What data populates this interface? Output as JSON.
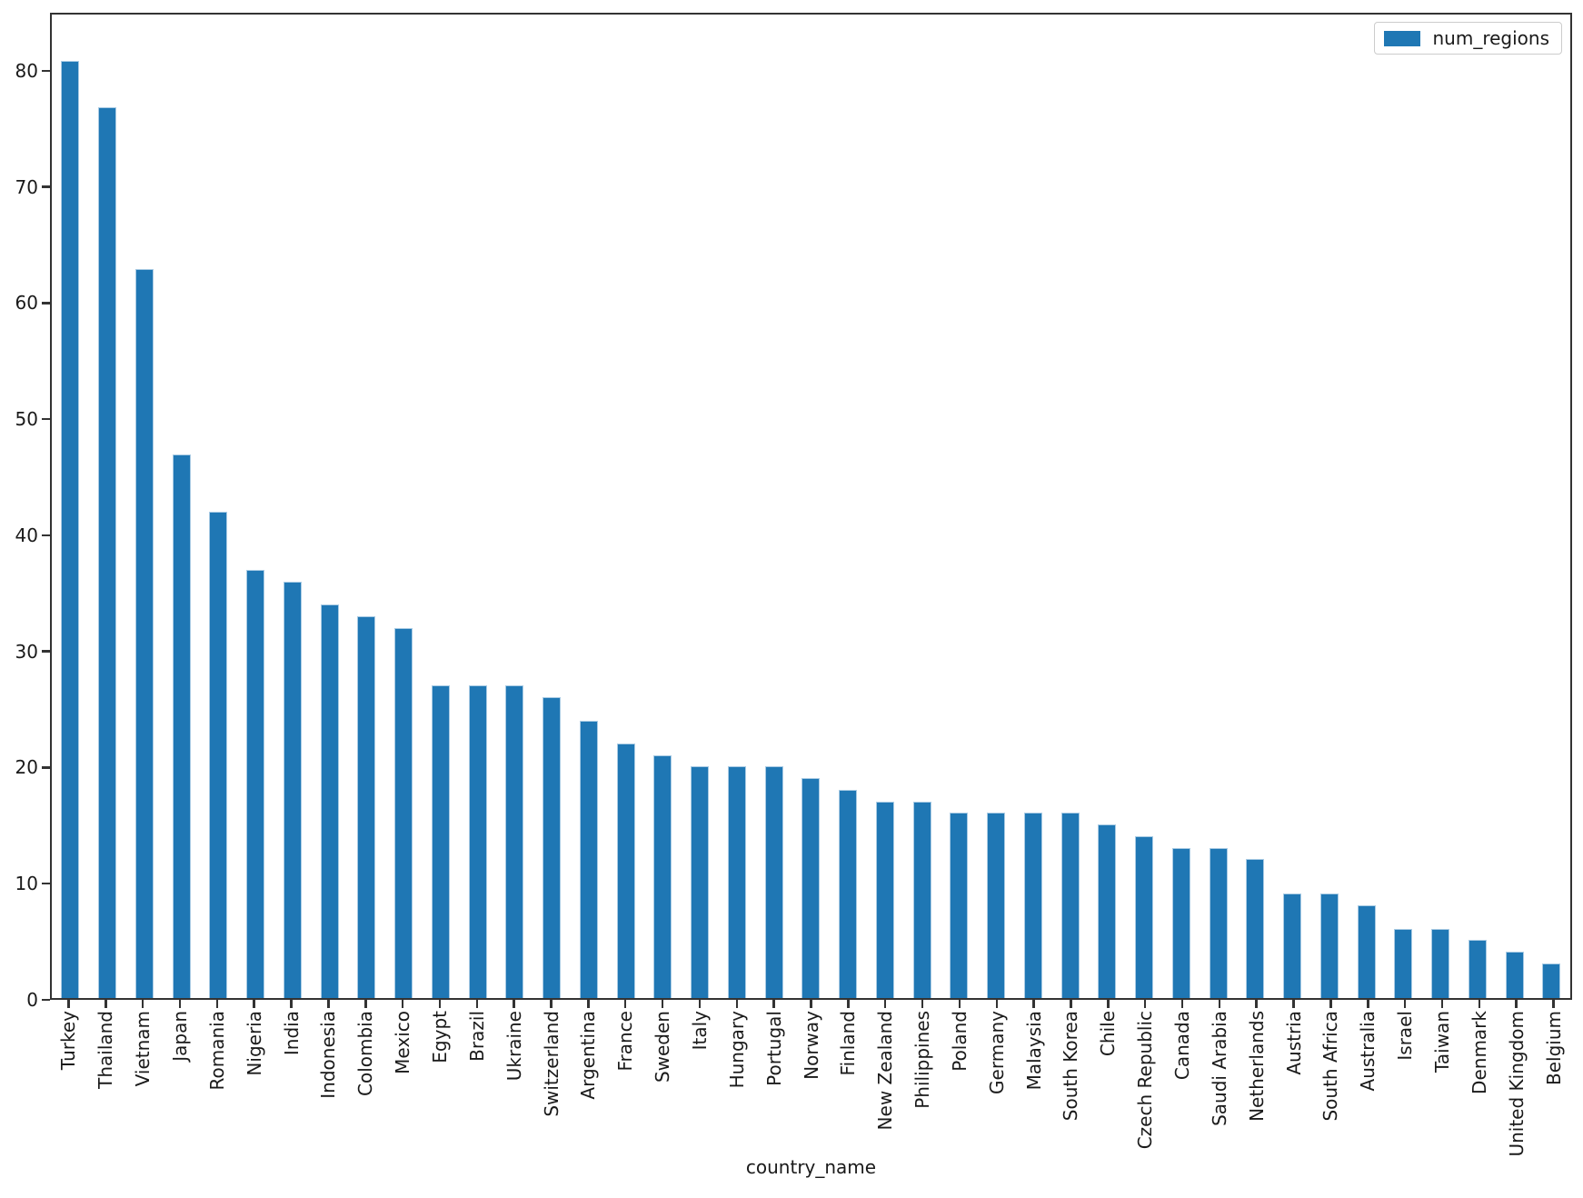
{
  "chart_data": {
    "type": "bar",
    "title": "",
    "xlabel": "country_name",
    "ylabel": "",
    "legend": {
      "label": "num_regions",
      "position": "upper right"
    },
    "bar_color": "#1f77b4",
    "bar_edge_color": "#a9cbe4",
    "grid": false,
    "ylim": [
      0,
      85
    ],
    "yticks": [
      0,
      10,
      20,
      30,
      40,
      50,
      60,
      70,
      80
    ],
    "categories": [
      "Turkey",
      "Thailand",
      "Vietnam",
      "Japan",
      "Romania",
      "Nigeria",
      "India",
      "Indonesia",
      "Colombia",
      "Mexico",
      "Egypt",
      "Brazil",
      "Ukraine",
      "Switzerland",
      "Argentina",
      "France",
      "Sweden",
      "Italy",
      "Hungary",
      "Portugal",
      "Norway",
      "Finland",
      "New Zealand",
      "Philippines",
      "Poland",
      "Germany",
      "Malaysia",
      "South Korea",
      "Chile",
      "Czech Republic",
      "Canada",
      "Saudi Arabia",
      "Netherlands",
      "Austria",
      "South Africa",
      "Australia",
      "Israel",
      "Taiwan",
      "Denmark",
      "United Kingdom",
      "Belgium"
    ],
    "series": [
      {
        "name": "num_regions",
        "values": [
          81,
          77,
          63,
          47,
          42,
          37,
          36,
          34,
          33,
          32,
          27,
          27,
          27,
          26,
          24,
          22,
          21,
          20,
          20,
          20,
          19,
          18,
          17,
          17,
          16,
          16,
          16,
          16,
          15,
          14,
          13,
          13,
          12,
          9,
          9,
          8,
          6,
          6,
          5,
          4,
          3
        ]
      }
    ]
  }
}
